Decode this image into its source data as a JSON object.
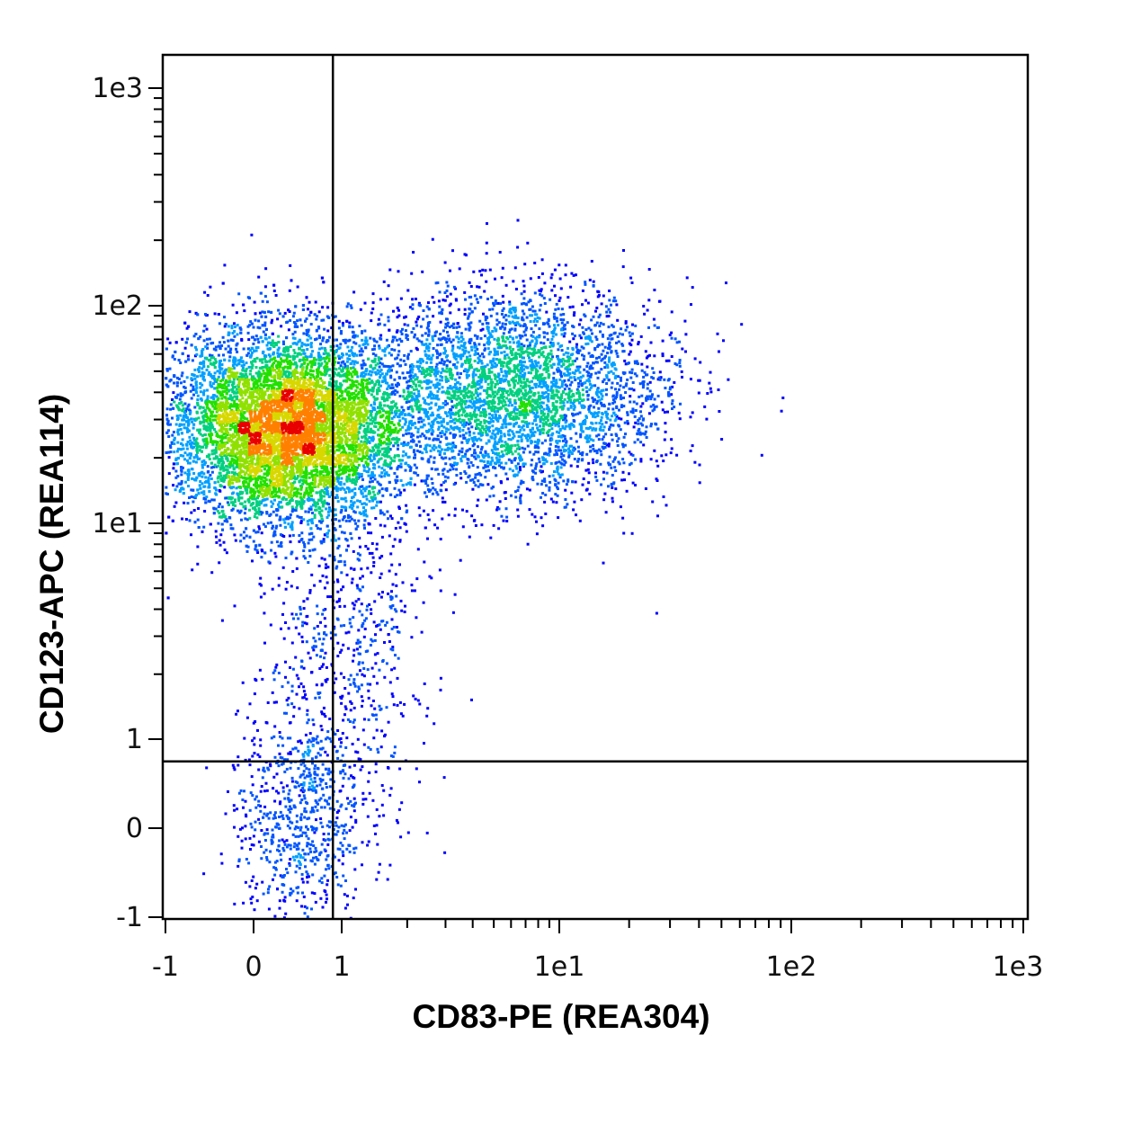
{
  "chart_data": {
    "type": "scatter",
    "title": "",
    "xlabel": "CD83-PE (REA304)",
    "ylabel": "CD123-APC (REA114)",
    "x_scale": "biexponential",
    "y_scale": "biexponential",
    "x_ticks": [
      "-1",
      "0",
      "1",
      "1e1",
      "1e2",
      "1e3"
    ],
    "y_ticks": [
      "-1",
      "0",
      "1",
      "1e1",
      "1e2",
      "1e3"
    ],
    "xlim": [
      -1,
      1000
    ],
    "ylim": [
      -1,
      1000
    ],
    "grid": false,
    "quadrant_gate": {
      "x": 0.9,
      "y": 0.75
    },
    "density_colors": [
      "#0000ff",
      "#0055ff",
      "#00a0ff",
      "#00d080",
      "#22e000",
      "#90e000",
      "#d8d800",
      "#ff8000",
      "#e80000"
    ],
    "populations": [
      {
        "name": "",
        "center": [
          0.35,
          28
        ],
        "spread": [
          0.55,
          0.28
        ],
        "weight": 0.62
      },
      {
        "name": "",
        "center": [
          6,
          40
        ],
        "spread": [
          0.7,
          0.3
        ],
        "weight": 0.28
      },
      {
        "name": "",
        "center": [
          0.5,
          0.1
        ],
        "spread": [
          0.3,
          0.35
        ],
        "weight": 0.05
      },
      {
        "name": "",
        "center": [
          1.0,
          3.0
        ],
        "spread": [
          0.4,
          0.6
        ],
        "weight": 0.05
      }
    ]
  }
}
